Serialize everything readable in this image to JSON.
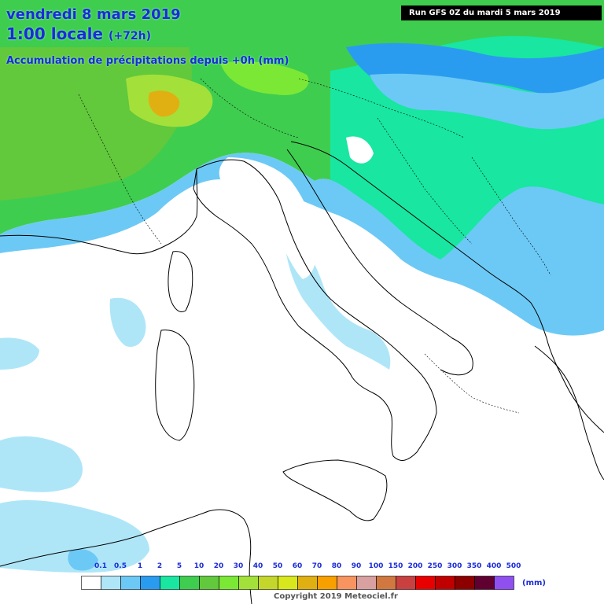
{
  "header": {
    "date_line": "vendredi 8 mars 2019",
    "time_line": "1:00 locale",
    "lead_time": "(+72h)",
    "product": "Accumulation de précipitations depuis +0h (mm)",
    "run_info": "Run GFS 0Z du mardi 5 mars 2019"
  },
  "legend": {
    "labels": [
      "0.1",
      "0.5",
      "1",
      "2",
      "5",
      "10",
      "20",
      "30",
      "40",
      "50",
      "60",
      "70",
      "80",
      "90",
      "100",
      "150",
      "200",
      "250",
      "300",
      "350",
      "400",
      "500"
    ],
    "colors": [
      "#ffffff",
      "#aee6f8",
      "#6cc9f5",
      "#2a9cf0",
      "#19e6a0",
      "#3fcd4f",
      "#62c83c",
      "#7ce836",
      "#a4e03a",
      "#c4d62c",
      "#d8e81c",
      "#e0b012",
      "#f8a000",
      "#f89460",
      "#d8a0a0",
      "#d07840",
      "#c84040",
      "#e80000",
      "#c00000",
      "#8c0000",
      "#600030",
      "#9050f0"
    ],
    "unit": "(mm)"
  },
  "copyright": "Copyright 2019 Meteociel.fr",
  "colors": {
    "title": "#1b2bd8",
    "coast": "#000000",
    "background": "#ffffff"
  }
}
